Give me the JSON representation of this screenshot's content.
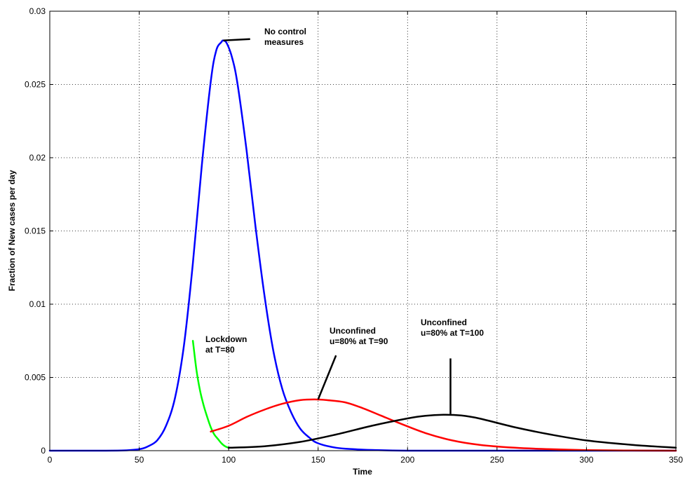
{
  "chart_data": {
    "type": "line",
    "title": "",
    "xlabel": "Time",
    "ylabel": "Fraction of New cases per day",
    "xlim": [
      0,
      350
    ],
    "ylim": [
      0,
      0.03
    ],
    "grid": true,
    "x_ticks": [
      0,
      50,
      100,
      150,
      200,
      250,
      300,
      350
    ],
    "x_tick_labels": [
      "0",
      "50",
      "100",
      "150",
      "200",
      "250",
      "300",
      "350"
    ],
    "y_ticks": [
      0,
      0.005,
      0.01,
      0.015,
      0.02,
      0.025,
      0.03
    ],
    "y_tick_labels": [
      "0",
      "0.005",
      "0.01",
      "0.015",
      "0.02",
      "0.025",
      "0.03"
    ],
    "series": [
      {
        "color": "#0000ff",
        "x": [
          0,
          20,
          40,
          50,
          55,
          60,
          65,
          70,
          75,
          80,
          85,
          90,
          93,
          96,
          97,
          99,
          102,
          105,
          110,
          115,
          120,
          125,
          130,
          135,
          140,
          145,
          150,
          160,
          170,
          180,
          200,
          250,
          350
        ],
        "y": [
          0,
          0,
          1e-05,
          0.0001,
          0.0003,
          0.0007,
          0.0017,
          0.0036,
          0.0072,
          0.0128,
          0.0195,
          0.0252,
          0.0273,
          0.0279,
          0.028,
          0.0278,
          0.0268,
          0.025,
          0.0205,
          0.0153,
          0.0106,
          0.0068,
          0.0042,
          0.0026,
          0.0015,
          0.0009,
          0.0005,
          0.0002,
          0.0001,
          5e-05,
          0,
          0,
          0
        ]
      },
      {
        "color": "#00ff00",
        "x": [
          80,
          82,
          84,
          86,
          88,
          90,
          92,
          94,
          96,
          98,
          100
        ],
        "y": [
          0.0075,
          0.0055,
          0.0041,
          0.0031,
          0.0023,
          0.0016,
          0.0011,
          0.0008,
          0.0005,
          0.0003,
          0.0002
        ]
      },
      {
        "color": "#ff0000",
        "x": [
          90,
          100,
          110,
          120,
          130,
          140,
          148,
          155,
          165,
          175,
          185,
          195,
          210,
          225,
          240,
          260,
          280,
          300,
          325,
          350
        ],
        "y": [
          0.0013,
          0.0017,
          0.0023,
          0.0028,
          0.0032,
          0.00345,
          0.0035,
          0.00345,
          0.0033,
          0.0029,
          0.0024,
          0.0019,
          0.0012,
          0.0007,
          0.0004,
          0.0002,
          0.0001,
          4e-05,
          1e-05,
          0
        ]
      },
      {
        "color": "#000000",
        "x": [
          100,
          120,
          140,
          160,
          180,
          200,
          210,
          220,
          230,
          240,
          260,
          280,
          300,
          325,
          350
        ],
        "y": [
          0.0002,
          0.0003,
          0.0006,
          0.0011,
          0.0017,
          0.0022,
          0.00238,
          0.00245,
          0.0024,
          0.0022,
          0.0016,
          0.0011,
          0.0007,
          0.0004,
          0.0002
        ]
      }
    ],
    "annotations": [
      {
        "lines": [
          "No control",
          "measures"
        ],
        "point": [
          97,
          0.028
        ],
        "pointer_end": [
          112,
          0.0281
        ]
      },
      {
        "lines": [
          "Lockdown",
          "at T=80"
        ],
        "point": [
          80,
          0.0075
        ],
        "pointer_end": null
      },
      {
        "lines": [
          "Unconfined",
          "u=80% at T=90"
        ],
        "point": [
          150,
          0.0035
        ],
        "pointer_end": [
          160,
          0.0065
        ]
      },
      {
        "lines": [
          "Unconfined",
          "u=80% at T=100"
        ],
        "point": [
          224,
          0.0025
        ],
        "pointer_end": [
          224,
          0.0063
        ]
      }
    ]
  }
}
